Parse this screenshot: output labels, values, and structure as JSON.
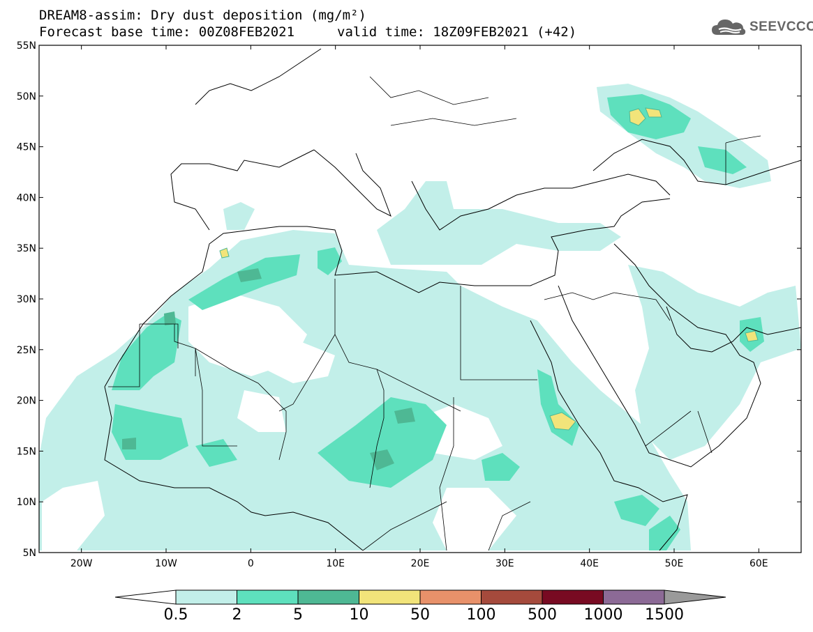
{
  "title": {
    "line1": "DREAM8-assim: Dry dust deposition (mg/m²)",
    "line2_left": "Forecast base time: 00Z08FEB2021",
    "line2_right": "valid time: 18Z09FEB2021 (+42)"
  },
  "logo": {
    "text": "SEEVCCC",
    "icon": "cloud-icon"
  },
  "map": {
    "projection": "lat-lon",
    "lon_range": [
      -25,
      65
    ],
    "lat_range": [
      5,
      55
    ],
    "lon_ticks": [
      "20W",
      "10W",
      "0",
      "10E",
      "20E",
      "30E",
      "40E",
      "50E",
      "60E"
    ],
    "lat_ticks": [
      "55N",
      "50N",
      "45N",
      "40N",
      "35N",
      "30N",
      "25N",
      "20N",
      "15N",
      "10N",
      "5N"
    ]
  },
  "colorbar": {
    "labels": [
      "0.5",
      "2",
      "5",
      "10",
      "50",
      "100",
      "500",
      "1000",
      "1500"
    ],
    "colors": [
      "#c2efe9",
      "#5ee0bd",
      "#4eb894",
      "#f2e47a",
      "#e8916a",
      "#a54a3c",
      "#780a22",
      "#8c6a96"
    ],
    "under_color": "#ffffff",
    "over_color": "#9a9a9a"
  }
}
